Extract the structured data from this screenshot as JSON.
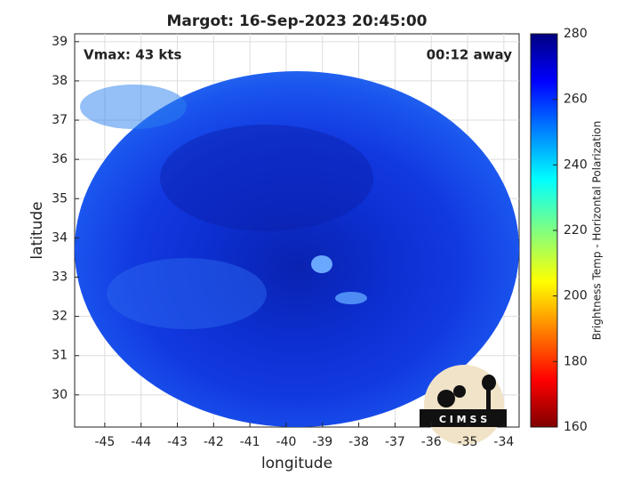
{
  "chart_data": {
    "type": "map",
    "title": "Margot: 16-Sep-2023 20:45:00",
    "annotations": [
      "Vmax: 43 kts",
      "00:12 away"
    ],
    "x_label": "longitude",
    "y_label": "latitude",
    "xlim": [
      -45.83,
      -33.58
    ],
    "ylim": [
      29.18,
      39.2
    ],
    "xticks": [
      -45,
      -44,
      -43,
      -42,
      -41,
      -40,
      -39,
      -38,
      -37,
      -36,
      -35,
      -34
    ],
    "yticks": [
      30,
      31,
      32,
      33,
      34,
      35,
      36,
      37,
      38,
      39
    ],
    "grid": true,
    "colorbar": {
      "label": "Brightness Temp - Horizontal Polarization",
      "lim": [
        160,
        280
      ],
      "ticks": [
        160,
        180,
        200,
        220,
        240,
        260,
        280
      ]
    },
    "logo": "C I M S S"
  }
}
